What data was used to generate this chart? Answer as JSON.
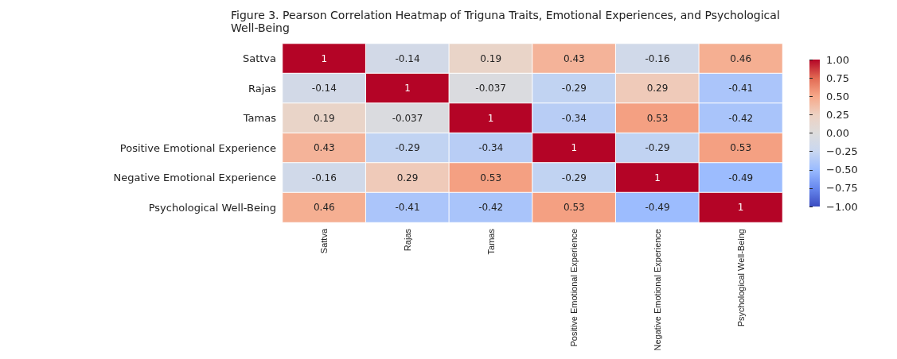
{
  "chart_data": {
    "type": "heatmap",
    "title": "Figure 3. Pearson Correlation Heatmap of Triguna Traits, Emotional Experiences, and Psychological Well-Being",
    "categories": [
      "Sattva",
      "Rajas",
      "Tamas",
      "Positive Emotional Experience",
      "Negative Emotional Experience",
      "Psychological Well-Being"
    ],
    "y_categories": [
      "Sattva",
      "Rajas",
      "Tamas",
      "Positive Emotional Experience",
      "Negative Emotional Experience",
      "Psychological Well-Being"
    ],
    "cells": [
      [
        1,
        -0.14,
        0.19,
        0.43,
        -0.16,
        0.46
      ],
      [
        -0.14,
        1,
        -0.037,
        -0.29,
        0.29,
        -0.41
      ],
      [
        0.19,
        -0.037,
        1,
        -0.34,
        0.53,
        -0.42
      ],
      [
        0.43,
        -0.29,
        -0.34,
        1,
        -0.29,
        0.53
      ],
      [
        -0.16,
        0.29,
        0.53,
        -0.29,
        1,
        -0.49
      ],
      [
        0.46,
        -0.41,
        -0.42,
        0.53,
        -0.49,
        1
      ]
    ],
    "data_labels": true,
    "clim": [
      -1,
      1
    ],
    "cticks": [
      {
        "value": -1,
        "label": "−1.00"
      },
      {
        "value": -0.75,
        "label": "−0.75"
      },
      {
        "value": -0.5,
        "label": "−0.50"
      },
      {
        "value": -0.25,
        "label": "−0.25"
      },
      {
        "value": 0,
        "label": "0.00"
      },
      {
        "value": 0.25,
        "label": "0.25"
      },
      {
        "value": 0.5,
        "label": "0.50"
      },
      {
        "value": 0.75,
        "label": "0.75"
      },
      {
        "value": 1,
        "label": "1.00"
      }
    ]
  }
}
